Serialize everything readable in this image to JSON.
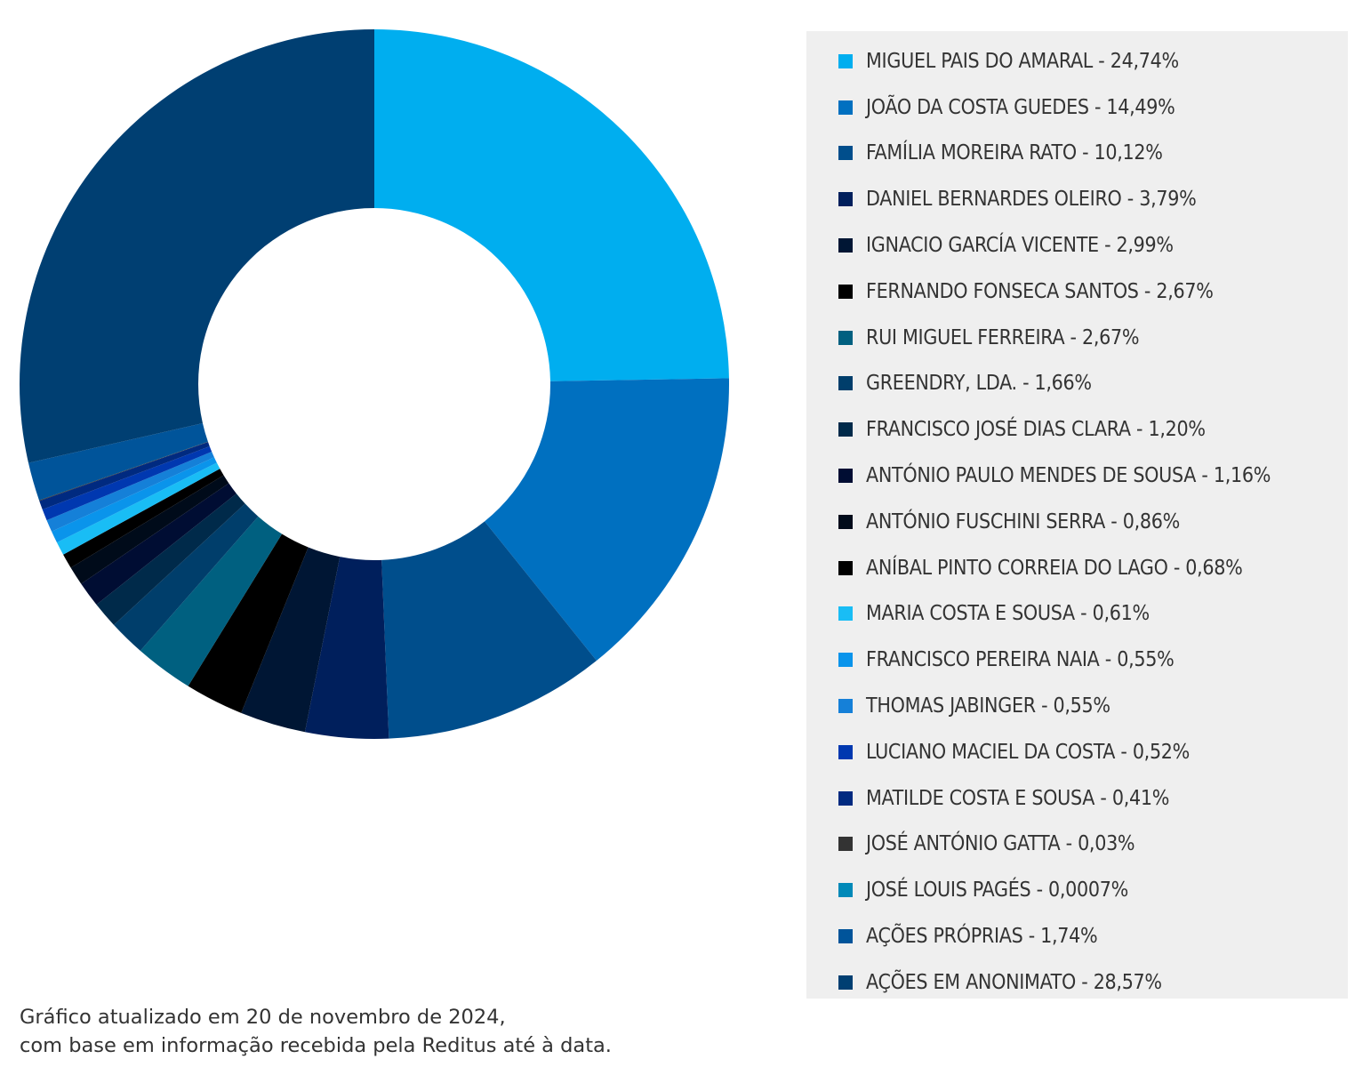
{
  "chart_data": {
    "type": "pie",
    "variant": "donut",
    "start_angle": "12 o'clock",
    "direction": "clockwise",
    "legend_position": "right",
    "slices": [
      {
        "label": "MIGUEL PAIS DO AMARAL - 24,74%",
        "value": 24.74,
        "color": "#00aeef"
      },
      {
        "label": "JOÃO DA COSTA GUEDES - 14,49%",
        "value": 14.49,
        "color": "#0070c0"
      },
      {
        "label": "FAMÍLIA MOREIRA RATO - 10,12%",
        "value": 10.12,
        "color": "#004e8c"
      },
      {
        "label": "DANIEL BERNARDES OLEIRO - 3,79%",
        "value": 3.79,
        "color": "#001f5c"
      },
      {
        "label": "IGNACIO GARCÍA VICENTE - 2,99%",
        "value": 2.99,
        "color": "#001634"
      },
      {
        "label": "FERNANDO FONSECA SANTOS - 2,67%",
        "value": 2.67,
        "color": "#000000"
      },
      {
        "label": "RUI MIGUEL FERREIRA - 2,67%",
        "value": 2.67,
        "color": "#006080"
      },
      {
        "label": "GREENDRY, LDA. - 1,66%",
        "value": 1.66,
        "color": "#003e6b"
      },
      {
        "label": "FRANCISCO JOSÉ DIAS CLARA - 1,20%",
        "value": 1.2,
        "color": "#002a4a"
      },
      {
        "label": "ANTÓNIO PAULO MENDES DE SOUSA - 1,16%",
        "value": 1.16,
        "color": "#000d33"
      },
      {
        "label": "ANTÓNIO FUSCHINI SERRA - 0,86%",
        "value": 0.86,
        "color": "#000b1a"
      },
      {
        "label": "ANÍBAL PINTO CORREIA DO LAGO - 0,68%",
        "value": 0.68,
        "color": "#000000"
      },
      {
        "label": "MARIA COSTA E SOUSA - 0,61%",
        "value": 0.61,
        "color": "#19bdf5"
      },
      {
        "label": "FRANCISCO PEREIRA NAIA - 0,55%",
        "value": 0.55,
        "color": "#0a94eb"
      },
      {
        "label": "THOMAS JABINGER - 0,55%",
        "value": 0.55,
        "color": "#1580d8"
      },
      {
        "label": "LUCIANO MACIEL DA COSTA - 0,52%",
        "value": 0.52,
        "color": "#0038b0"
      },
      {
        "label": "MATILDE COSTA E SOUSA - 0,41%",
        "value": 0.41,
        "color": "#002a80"
      },
      {
        "label": "JOSÉ ANTÓNIO GATTA - 0,03%",
        "value": 0.03,
        "color": "#333333"
      },
      {
        "label": "JOSÉ LOUIS PAGÉS - 0,0007%",
        "value": 0.0007,
        "color": "#0089b8"
      },
      {
        "label": "AÇÕES PRÓPRIAS - 1,74%",
        "value": 1.74,
        "color": "#00549a"
      },
      {
        "label": "AÇÕES EM ANONIMATO - 28,57%",
        "value": 28.57,
        "color": "#003f72"
      }
    ]
  },
  "footnote": {
    "line1": "Gráfico atualizado em 20 de novembro de 2024,",
    "line2": "com base em informação recebida pela Reditus até à data."
  }
}
